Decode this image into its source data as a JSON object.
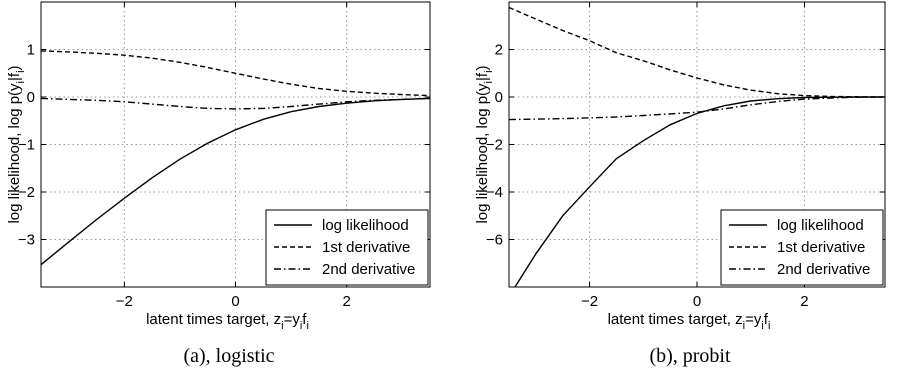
{
  "chart_data": [
    {
      "type": "line",
      "caption": "(a), logistic",
      "xlabel": "latent times target, z",
      "xlabel_sub_z": "i",
      "xlabel_mid": "=y",
      "xlabel_sub_y": "i",
      "xlabel_f": "f",
      "xlabel_sub_f": "i",
      "ylabel": "log likelihood, log p(y",
      "ylabel_sub_y": "i",
      "ylabel_mid": "|f",
      "ylabel_sub_f": "i",
      "ylabel_end": ")",
      "xlim": [
        -3.5,
        3.5
      ],
      "ylim": [
        -4,
        2
      ],
      "xticks": [
        -2,
        0,
        2
      ],
      "yticks": [
        1,
        0,
        -1,
        -2,
        -3
      ],
      "grid": true,
      "legend_position": "bottom-right",
      "series": [
        {
          "name": "log likelihood",
          "style": "solid",
          "x": [
            -3.5,
            -3.0,
            -2.5,
            -2.0,
            -1.5,
            -1.0,
            -0.5,
            0.0,
            0.5,
            1.0,
            1.5,
            2.0,
            2.5,
            3.0,
            3.5
          ],
          "y": [
            -3.53,
            -3.05,
            -2.58,
            -2.13,
            -1.7,
            -1.31,
            -0.97,
            -0.69,
            -0.47,
            -0.31,
            -0.2,
            -0.13,
            -0.08,
            -0.05,
            -0.03
          ]
        },
        {
          "name": "1st derivative",
          "style": "dashed",
          "x": [
            -3.5,
            -3.0,
            -2.5,
            -2.0,
            -1.5,
            -1.0,
            -0.5,
            0.0,
            0.5,
            1.0,
            1.5,
            2.0,
            2.5,
            3.0,
            3.5
          ],
          "y": [
            0.97,
            0.95,
            0.92,
            0.88,
            0.82,
            0.73,
            0.62,
            0.5,
            0.38,
            0.27,
            0.18,
            0.12,
            0.08,
            0.05,
            0.03
          ]
        },
        {
          "name": "2nd derivative",
          "style": "dashdot",
          "x": [
            -3.5,
            -3.0,
            -2.5,
            -2.0,
            -1.5,
            -1.0,
            -0.5,
            0.0,
            0.5,
            1.0,
            1.5,
            2.0,
            2.5,
            3.0,
            3.5
          ],
          "y": [
            -0.03,
            -0.05,
            -0.07,
            -0.1,
            -0.15,
            -0.2,
            -0.24,
            -0.25,
            -0.24,
            -0.2,
            -0.15,
            -0.1,
            -0.07,
            -0.05,
            -0.03
          ]
        }
      ]
    },
    {
      "type": "line",
      "caption": "(b), probit",
      "xlabel": "latent times target, z",
      "xlabel_sub_z": "i",
      "xlabel_mid": "=y",
      "xlabel_sub_y": "i",
      "xlabel_f": "f",
      "xlabel_sub_f": "i",
      "ylabel": "log likelihood, log p(y",
      "ylabel_sub_y": "i",
      "ylabel_mid": "|f",
      "ylabel_sub_f": "i",
      "ylabel_end": ")",
      "xlim": [
        -3.5,
        3.5
      ],
      "ylim": [
        -8,
        4
      ],
      "xticks": [
        -2,
        0,
        2
      ],
      "yticks": [
        2,
        0,
        -2,
        -4,
        -6
      ],
      "grid": true,
      "legend_position": "bottom-right",
      "series": [
        {
          "name": "log likelihood",
          "style": "solid",
          "x": [
            -3.5,
            -3.0,
            -2.5,
            -2.0,
            -1.5,
            -1.0,
            -0.5,
            0.0,
            0.5,
            1.0,
            1.5,
            2.0,
            2.5,
            3.0,
            3.5
          ],
          "y": [
            -8.4,
            -6.6,
            -5.0,
            -3.78,
            -2.6,
            -1.84,
            -1.17,
            -0.69,
            -0.37,
            -0.17,
            -0.07,
            -0.02,
            -0.01,
            0.0,
            0.0
          ]
        },
        {
          "name": "1st derivative",
          "style": "dashed",
          "x": [
            -3.5,
            -3.0,
            -2.5,
            -2.0,
            -1.5,
            -1.0,
            -0.5,
            0.0,
            0.5,
            1.0,
            1.5,
            2.0,
            2.5,
            3.0,
            3.5
          ],
          "y": [
            3.77,
            3.28,
            2.8,
            2.37,
            1.86,
            1.53,
            1.14,
            0.8,
            0.51,
            0.29,
            0.14,
            0.06,
            0.02,
            0.01,
            0.0
          ]
        },
        {
          "name": "2nd derivative",
          "style": "dashdot",
          "x": [
            -3.5,
            -3.0,
            -2.5,
            -2.0,
            -1.5,
            -1.0,
            -0.5,
            0.0,
            0.5,
            1.0,
            1.5,
            2.0,
            2.5,
            3.0,
            3.5
          ],
          "y": [
            -0.95,
            -0.93,
            -0.91,
            -0.88,
            -0.84,
            -0.78,
            -0.71,
            -0.64,
            -0.5,
            -0.33,
            -0.19,
            -0.09,
            -0.04,
            -0.01,
            0.0
          ]
        }
      ]
    }
  ]
}
